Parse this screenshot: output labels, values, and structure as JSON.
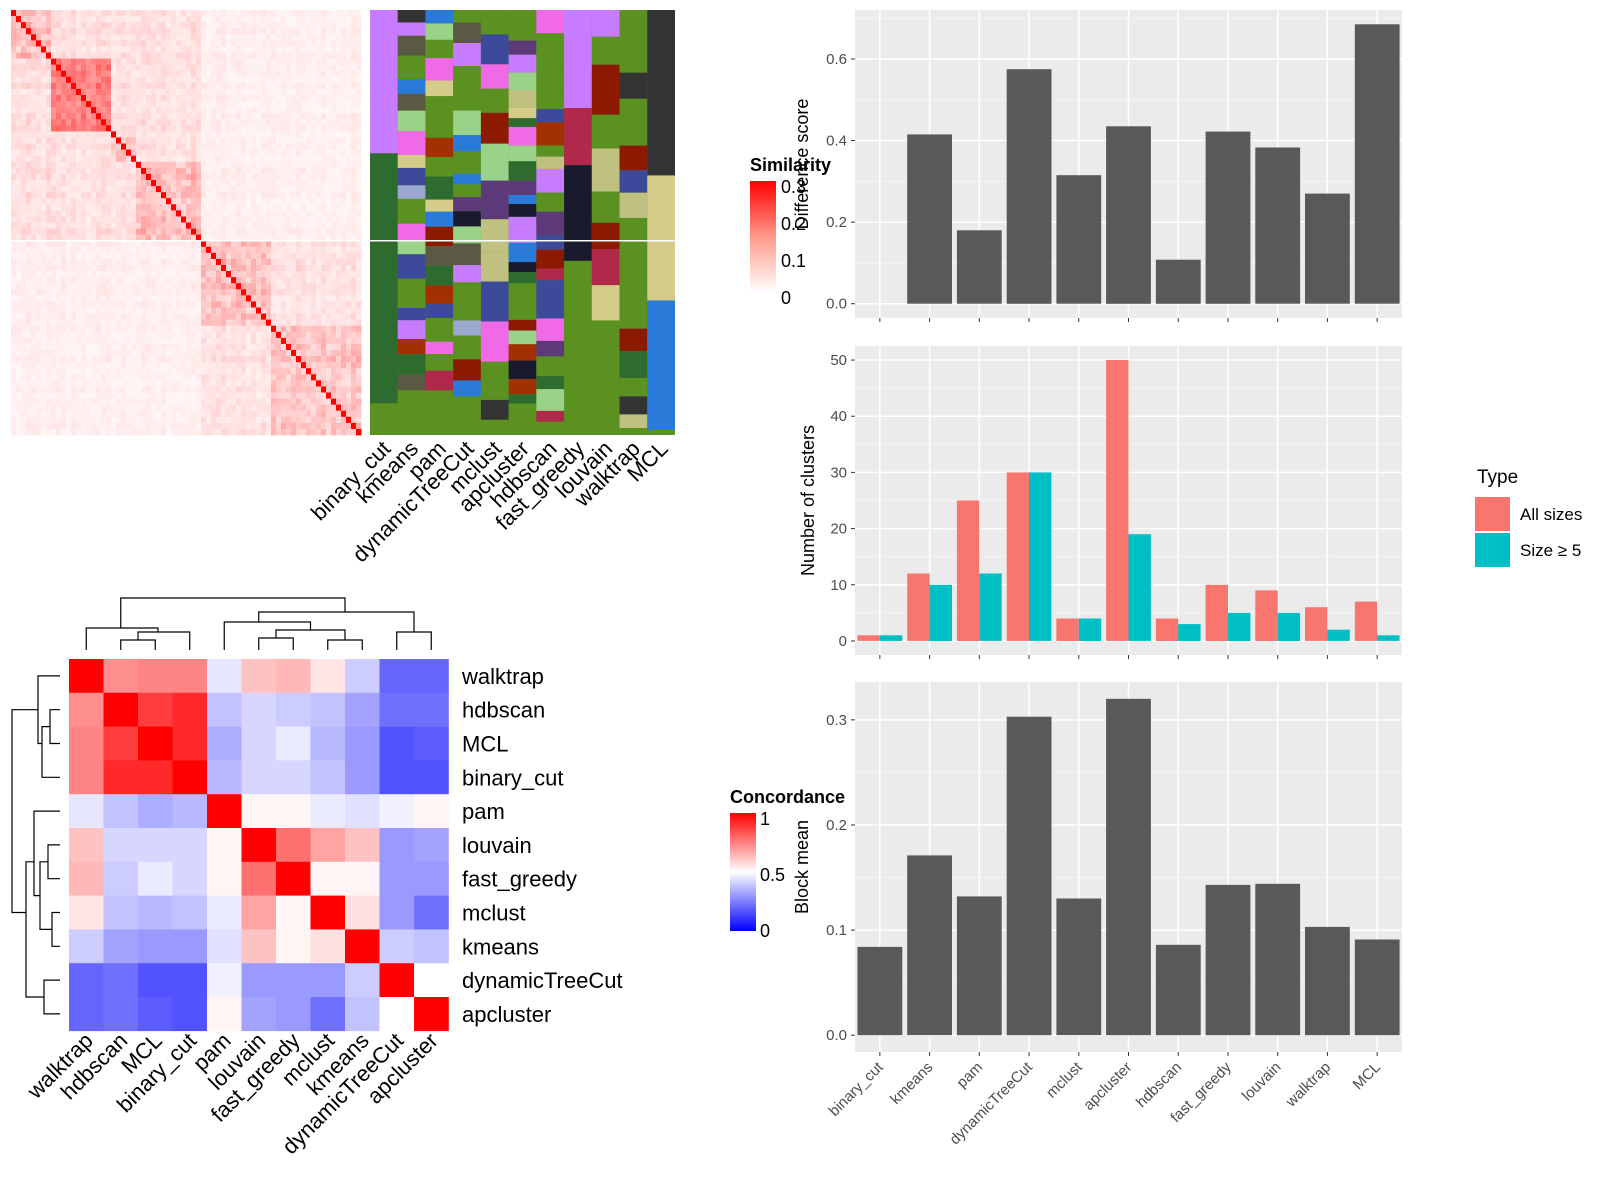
{
  "methods": [
    "binary_cut",
    "kmeans",
    "pam",
    "dynamicTreeCut",
    "mclust",
    "apcluster",
    "hdbscan",
    "fast_greedy",
    "louvain",
    "walktrap",
    "MCL"
  ],
  "similarity_legend": {
    "title": "Similarity",
    "ticks": [
      "0.3",
      "0.2",
      "0.1",
      "0"
    ],
    "colors": [
      "#ffffff",
      "#ff0000"
    ]
  },
  "concordance_legend": {
    "title": "Concordance",
    "ticks": [
      "1",
      "0.5",
      "0"
    ],
    "colors": [
      "#0000ff",
      "#ffffff",
      "#ff0000"
    ]
  },
  "chart_data": [
    {
      "type": "heatmap",
      "name": "similarity_matrix",
      "title": "",
      "legend_title": "Similarity",
      "range": [
        0,
        0.3
      ],
      "blocks": [
        "upper",
        "lower"
      ],
      "columns": [
        "binary_cut",
        "kmeans",
        "pam",
        "dynamicTreeCut",
        "mclust",
        "apcluster",
        "hdbscan",
        "fast_greedy",
        "louvain",
        "walktrap",
        "MCL"
      ]
    },
    {
      "type": "heatmap",
      "name": "concordance_matrix",
      "legend_title": "Concordance",
      "range": [
        0,
        1
      ],
      "rows": [
        "walktrap",
        "hdbscan",
        "MCL",
        "binary_cut",
        "pam",
        "louvain",
        "fast_greedy",
        "mclust",
        "kmeans",
        "dynamicTreeCut",
        "apcluster"
      ],
      "columns": [
        "walktrap",
        "hdbscan",
        "MCL",
        "binary_cut",
        "pam",
        "louvain",
        "fast_greedy",
        "mclust",
        "kmeans",
        "dynamicTreeCut",
        "apcluster"
      ],
      "values": [
        [
          1.0,
          0.72,
          0.74,
          0.74,
          0.45,
          0.62,
          0.64,
          0.55,
          0.4,
          0.2,
          0.2
        ],
        [
          0.72,
          1.0,
          0.88,
          0.92,
          0.38,
          0.42,
          0.4,
          0.38,
          0.32,
          0.22,
          0.22
        ],
        [
          0.74,
          0.88,
          1.0,
          0.92,
          0.34,
          0.42,
          0.46,
          0.36,
          0.3,
          0.16,
          0.18
        ],
        [
          0.74,
          0.92,
          0.92,
          1.0,
          0.36,
          0.42,
          0.42,
          0.38,
          0.3,
          0.16,
          0.16
        ],
        [
          0.45,
          0.38,
          0.34,
          0.36,
          1.0,
          0.52,
          0.52,
          0.46,
          0.44,
          0.47,
          0.52
        ],
        [
          0.62,
          0.42,
          0.42,
          0.42,
          0.52,
          1.0,
          0.78,
          0.68,
          0.62,
          0.3,
          0.32
        ],
        [
          0.64,
          0.4,
          0.46,
          0.42,
          0.52,
          0.78,
          1.0,
          0.52,
          0.52,
          0.3,
          0.3
        ],
        [
          0.55,
          0.38,
          0.36,
          0.38,
          0.46,
          0.68,
          0.52,
          1.0,
          0.56,
          0.3,
          0.22
        ],
        [
          0.4,
          0.32,
          0.3,
          0.3,
          0.44,
          0.62,
          0.52,
          0.56,
          1.0,
          0.4,
          0.38
        ],
        [
          0.2,
          0.22,
          0.16,
          0.16,
          0.47,
          0.3,
          0.3,
          0.3,
          0.4,
          1.0,
          0.5
        ],
        [
          0.2,
          0.22,
          0.18,
          0.16,
          0.52,
          0.32,
          0.3,
          0.22,
          0.38,
          0.5,
          1.0
        ]
      ]
    },
    {
      "type": "bar",
      "name": "difference_score",
      "categories": [
        "binary_cut",
        "kmeans",
        "pam",
        "dynamicTreeCut",
        "mclust",
        "apcluster",
        "hdbscan",
        "fast_greedy",
        "louvain",
        "walktrap",
        "MCL"
      ],
      "values": [
        0.0,
        0.415,
        0.18,
        0.575,
        0.315,
        0.435,
        0.108,
        0.422,
        0.383,
        0.27,
        0.685
      ],
      "xlabel": "",
      "ylabel": "Difference score",
      "ylim": [
        -0.035,
        0.72
      ],
      "yticks": [
        "0.0",
        "0.2",
        "0.4",
        "0.6"
      ],
      "bar_color": "#595959"
    },
    {
      "type": "bar",
      "name": "number_of_clusters",
      "categories": [
        "binary_cut",
        "kmeans",
        "pam",
        "dynamicTreeCut",
        "mclust",
        "apcluster",
        "hdbscan",
        "fast_greedy",
        "louvain",
        "walktrap",
        "MCL"
      ],
      "series": [
        {
          "name": "All sizes",
          "color": "#f8766d",
          "values": [
            1,
            12,
            25,
            30,
            4,
            50,
            4,
            10,
            9,
            6,
            7
          ]
        },
        {
          "name": "Size ≥ 5",
          "color": "#00bfc4",
          "values": [
            1,
            10,
            12,
            30,
            4,
            19,
            3,
            5,
            5,
            2,
            1
          ]
        }
      ],
      "xlabel": "",
      "ylabel": "Number of clusters",
      "ylim": [
        -2.5,
        52.5
      ],
      "yticks": [
        "0",
        "10",
        "20",
        "30",
        "40",
        "50"
      ],
      "legend_title": "Type",
      "legend_position": "right"
    },
    {
      "type": "bar",
      "name": "block_mean",
      "categories": [
        "binary_cut",
        "kmeans",
        "pam",
        "dynamicTreeCut",
        "mclust",
        "apcluster",
        "hdbscan",
        "fast_greedy",
        "louvain",
        "walktrap",
        "MCL"
      ],
      "values": [
        0.084,
        0.171,
        0.132,
        0.303,
        0.13,
        0.32,
        0.086,
        0.143,
        0.144,
        0.103,
        0.091
      ],
      "xlabel": "",
      "ylabel": "Block mean",
      "ylim": [
        -0.016,
        0.336
      ],
      "yticks": [
        "0.0",
        "0.1",
        "0.2",
        "0.3"
      ],
      "bar_color": "#595959"
    }
  ]
}
